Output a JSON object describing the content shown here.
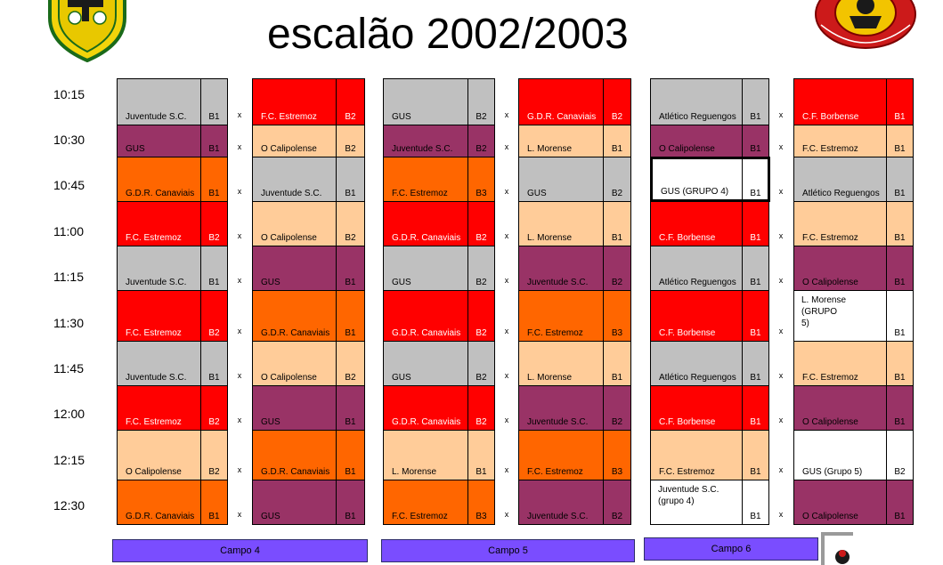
{
  "title": "escalão 2002/2003",
  "colors": {
    "grey": "#c0c0c0",
    "maroon": "#993366",
    "orange": "#ff6600",
    "red": "#ff0000",
    "peach": "#ffcc99",
    "white": "#ffffff",
    "field_bar": "#7a4dff"
  },
  "times": [
    "10:15",
    "10:30",
    "10:45",
    "11:00",
    "11:15",
    "11:30",
    "11:45",
    "12:00",
    "12:15",
    "12:30"
  ],
  "vs_label": "x",
  "fields": [
    {
      "label": "Campo 4"
    },
    {
      "label": "Campo 5"
    },
    {
      "label": "Campo 6"
    }
  ],
  "matches": [
    [
      [
        {
          "team": "Juventude S.C.",
          "group": "B1",
          "color": "grey"
        },
        {
          "team": "F.C. Estremoz",
          "group": "B2",
          "color": "red"
        }
      ],
      [
        {
          "team": "GUS",
          "group": "B2",
          "color": "grey"
        },
        {
          "team": "G.D.R. Canaviais",
          "group": "B2",
          "color": "red"
        }
      ],
      [
        {
          "team": "Atlético Reguengos",
          "group": "B1",
          "color": "grey"
        },
        {
          "team": "C.F. Borbense",
          "group": "B1",
          "color": "red"
        }
      ]
    ],
    [
      [
        {
          "team": "GUS",
          "group": "B1",
          "color": "maroon"
        },
        {
          "team": "O Calipolense",
          "group": "B2",
          "color": "peach"
        }
      ],
      [
        {
          "team": "Juventude S.C.",
          "group": "B2",
          "color": "maroon"
        },
        {
          "team": "L. Morense",
          "group": "B1",
          "color": "peach"
        }
      ],
      [
        {
          "team": "O Calipolense",
          "group": "B1",
          "color": "maroon"
        },
        {
          "team": "F.C. Estremoz",
          "group": "B1",
          "color": "peach"
        }
      ]
    ],
    [
      [
        {
          "team": "G.D.R. Canaviais",
          "group": "B1",
          "color": "orange"
        },
        {
          "team": "Juventude S.C.",
          "group": "B1",
          "color": "grey"
        }
      ],
      [
        {
          "team": "F.C. Estremoz",
          "group": "B3",
          "color": "orange"
        },
        {
          "team": "GUS",
          "group": "B2",
          "color": "grey"
        }
      ],
      [
        {
          "team": "GUS (GRUPO 4)",
          "group": "B1",
          "color": "white",
          "highlight": true
        },
        {
          "team": "Atlético Reguengos",
          "group": "B1",
          "color": "grey"
        }
      ]
    ],
    [
      [
        {
          "team": "F.C. Estremoz",
          "group": "B2",
          "color": "red"
        },
        {
          "team": "O Calipolense",
          "group": "B2",
          "color": "peach"
        }
      ],
      [
        {
          "team": "G.D.R. Canaviais",
          "group": "B2",
          "color": "red"
        },
        {
          "team": "L. Morense",
          "group": "B1",
          "color": "peach"
        }
      ],
      [
        {
          "team": "C.F. Borbense",
          "group": "B1",
          "color": "red"
        },
        {
          "team": "F.C. Estremoz",
          "group": "B1",
          "color": "peach"
        }
      ]
    ],
    [
      [
        {
          "team": "Juventude S.C.",
          "group": "B1",
          "color": "grey"
        },
        {
          "team": "GUS",
          "group": "B1",
          "color": "maroon"
        }
      ],
      [
        {
          "team": "GUS",
          "group": "B2",
          "color": "grey"
        },
        {
          "team": "Juventude S.C.",
          "group": "B2",
          "color": "maroon"
        }
      ],
      [
        {
          "team": "Atlético Reguengos",
          "group": "B1",
          "color": "grey"
        },
        {
          "team": "O Calipolense",
          "group": "B1",
          "color": "maroon"
        }
      ]
    ],
    [
      [
        {
          "team": "F.C. Estremoz",
          "group": "B2",
          "color": "red"
        },
        {
          "team": "G.D.R. Canaviais",
          "group": "B1",
          "color": "orange"
        }
      ],
      [
        {
          "team": "G.D.R. Canaviais",
          "group": "B2",
          "color": "red"
        },
        {
          "team": "F.C. Estremoz",
          "group": "B3",
          "color": "orange"
        }
      ],
      [
        {
          "team": "C.F. Borbense",
          "group": "B1",
          "color": "red"
        },
        {
          "team": "L. Morense\n            (GRUPO\n            5)",
          "group": "B1",
          "color": "white",
          "multi": true
        }
      ]
    ],
    [
      [
        {
          "team": "Juventude S.C.",
          "group": "B1",
          "color": "grey"
        },
        {
          "team": "O Calipolense",
          "group": "B2",
          "color": "peach"
        }
      ],
      [
        {
          "team": "GUS",
          "group": "B2",
          "color": "grey"
        },
        {
          "team": "L. Morense",
          "group": "B1",
          "color": "peach"
        }
      ],
      [
        {
          "team": "Atlético Reguengos",
          "group": "B1",
          "color": "grey"
        },
        {
          "team": "F.C. Estremoz",
          "group": "B1",
          "color": "peach"
        }
      ]
    ],
    [
      [
        {
          "team": "F.C. Estremoz",
          "group": "B2",
          "color": "red"
        },
        {
          "team": "GUS",
          "group": "B1",
          "color": "maroon"
        }
      ],
      [
        {
          "team": "G.D.R. Canaviais",
          "group": "B2",
          "color": "red"
        },
        {
          "team": "Juventude S.C.",
          "group": "B2",
          "color": "maroon"
        }
      ],
      [
        {
          "team": "C.F. Borbense",
          "group": "B1",
          "color": "red"
        },
        {
          "team": "O Calipolense",
          "group": "B1",
          "color": "maroon"
        }
      ]
    ],
    [
      [
        {
          "team": "O Calipolense",
          "group": "B2",
          "color": "peach"
        },
        {
          "team": "G.D.R. Canaviais",
          "group": "B1",
          "color": "orange"
        }
      ],
      [
        {
          "team": "L. Morense",
          "group": "B1",
          "color": "peach"
        },
        {
          "team": "F.C. Estremoz",
          "group": "B3",
          "color": "orange"
        }
      ],
      [
        {
          "team": "F.C. Estremoz",
          "group": "B1",
          "color": "peach"
        },
        {
          "team": "GUS (Grupo 5)",
          "group": "B2",
          "color": "white"
        }
      ]
    ],
    [
      [
        {
          "team": "G.D.R. Canaviais",
          "group": "B1",
          "color": "orange"
        },
        {
          "team": "GUS",
          "group": "B1",
          "color": "maroon"
        }
      ],
      [
        {
          "team": "F.C. Estremoz",
          "group": "B3",
          "color": "orange"
        },
        {
          "team": "Juventude S.C.",
          "group": "B2",
          "color": "maroon"
        }
      ],
      [
        {
          "team": "Juventude S.C.\n        (grupo 4)",
          "group": "B1",
          "color": "white",
          "multi": true
        },
        {
          "team": "O Calipolense",
          "group": "B1",
          "color": "maroon"
        }
      ]
    ]
  ]
}
